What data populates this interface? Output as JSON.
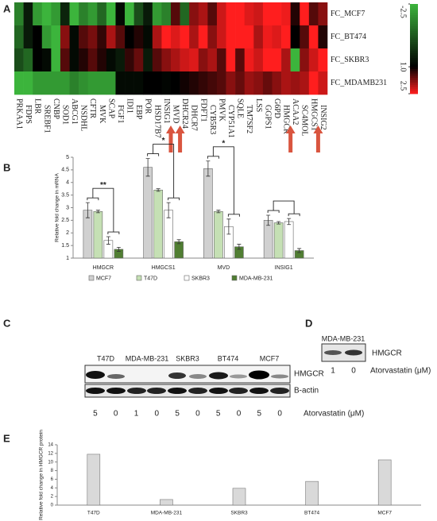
{
  "panel_labels": [
    "A",
    "B",
    "C",
    "D",
    "E"
  ],
  "chart_data": [
    {
      "type": "heatmap",
      "columns": [
        "PRKAA1",
        "FDPS",
        "LBR",
        "SREBF1",
        "CNBP",
        "SOD1",
        "ABCG1",
        "NSDHL",
        "CFTR",
        "MVK",
        "SCAP",
        "FGF1",
        "IDI1",
        "EBP",
        "POR",
        "HSD17B7",
        "INSIG1",
        "MVD",
        "DHCR24",
        "DHCR7",
        "FDFT1",
        "CYB5R3",
        "PMVK",
        "CYP51A1",
        "SQLE",
        "TM7SF2",
        "LSS",
        "GGPS1",
        "G6PD",
        "HMGCR",
        "ACAA2",
        "SC4MOL",
        "HMGCS1",
        "INSIG2"
      ],
      "rows": [
        "FC_MCF7",
        "FC_BT474",
        "FC_SKBR3",
        "FC_MDAMB231"
      ],
      "values": [
        [
          -1.5,
          0.5,
          -2,
          -2.5,
          -2,
          0.3,
          -2.5,
          -1.5,
          -2,
          -1,
          -2.5,
          0.8,
          -2.5,
          -0.5,
          0.5,
          -2,
          -1.5,
          1.5,
          -1,
          1.8,
          2,
          1.5,
          2.2,
          2.5,
          2.5,
          2.3,
          2.2,
          2.5,
          2.5,
          2.4,
          1.2,
          2.5,
          1.5,
          1.8
        ],
        [
          -1,
          0.5,
          1,
          -2,
          -2.5,
          1.8,
          0.8,
          1.5,
          1.7,
          1.3,
          2,
          1.5,
          1,
          1.2,
          0.8,
          2,
          2.5,
          2.3,
          2.5,
          2,
          2.5,
          1.8,
          2.2,
          2.5,
          2.5,
          2.5,
          2,
          2.4,
          2.3,
          2.5,
          1,
          1.5,
          2.5,
          1.2
        ],
        [
          -0.5,
          -1,
          1,
          0.8,
          -2.5,
          1.5,
          0.8,
          1.2,
          1.5,
          1.2,
          0.8,
          0.5,
          1.3,
          1.6,
          0.5,
          1.5,
          1.8,
          2,
          2.2,
          2.3,
          1.8,
          2,
          1.5,
          2.5,
          1.5,
          2.4,
          2.2,
          2.5,
          2.5,
          2,
          -2.5,
          1.8,
          2.2,
          2.5
        ],
        [
          -2.5,
          -2.5,
          -2,
          -2,
          -2,
          -2,
          -1.5,
          -1.8,
          -2,
          -2,
          -2,
          0.8,
          0.8,
          0.8,
          1,
          1,
          0.9,
          1,
          1.1,
          1.2,
          1.3,
          1.4,
          1.5,
          1.8,
          1.6,
          1.9,
          1.8,
          1.6,
          1.8,
          2,
          1.9,
          2,
          2.5,
          2.2
        ]
      ],
      "colorbar_ticks": [
        -2.5,
        {
          "value": 1,
          "label": "1.0"
        },
        2.5
      ],
      "colors": [
        "#3cb43c",
        "#000000",
        "#ff1e1e"
      ],
      "highlight": [
        16,
        17,
        29,
        32
      ],
      "highlight_color": "#d9553f"
    },
    {
      "type": "bar",
      "y_label": "Relative fold change in mRNA",
      "categories": [
        "HMGCR",
        "HMGCS1",
        "MVD",
        "INSIG1"
      ],
      "series": [
        {
          "name": "MCF7",
          "color": "#d0d0d0",
          "values": [
            2.9,
            4.6,
            4.55,
            2.5
          ],
          "errors": [
            0.3,
            0.35,
            0.3,
            0.2
          ]
        },
        {
          "name": "T47D",
          "color": "#c5e0b4",
          "values": [
            2.85,
            3.7,
            2.85,
            2.4
          ],
          "errors": [
            0.05,
            0.05,
            0.05,
            0.05
          ]
        },
        {
          "name": "SKBR3",
          "color": "#ffffff",
          "values": [
            1.7,
            2.9,
            2.25,
            2.45
          ],
          "errors": [
            0.15,
            0.3,
            0.3,
            0.12
          ]
        },
        {
          "name": "MDA-MB-231",
          "color": "#507e32",
          "values": [
            1.35,
            1.65,
            1.45,
            1.3
          ],
          "errors": [
            0.08,
            0.08,
            0.1,
            0.08
          ]
        }
      ],
      "ylim": [
        1,
        5
      ],
      "yticks": [
        1,
        1.5,
        2,
        2.5,
        3,
        3.5,
        4,
        4.5,
        5
      ],
      "brackets": [
        {
          "category": 0,
          "label": "**"
        },
        {
          "category": 1,
          "label": "*"
        },
        {
          "category": 2,
          "label": "*"
        },
        {
          "category": 3
        }
      ]
    },
    {
      "type": "bar",
      "y_label": "Relative fold change in HMGCR protein",
      "categories": [
        "T47D",
        "MDA-MB-231",
        "SKBR3",
        "BT474",
        "MCF7"
      ],
      "values": [
        11.8,
        1.3,
        3.9,
        5.5,
        10.5
      ],
      "color": "#d9d9d9",
      "ylim": [
        0,
        14
      ],
      "yticks": [
        0,
        2,
        4,
        6,
        8,
        10,
        12,
        14
      ]
    }
  ],
  "blots": [
    {
      "lanes": [
        "T47D",
        "MDA-MB-231",
        "SKBR3",
        "BT474",
        "MCF7"
      ],
      "bands": [
        "HMGCR",
        "B-actin"
      ],
      "doses": [
        5,
        0,
        1,
        0,
        5,
        0,
        5,
        0,
        5,
        0
      ],
      "dose_label": "Atorvastatin (μM)"
    },
    {
      "lanes": [
        "MDA-MB-231"
      ],
      "bands": [
        "HMGCR"
      ],
      "doses": [
        1,
        0
      ],
      "dose_label": "Atorvastatin (μM)"
    }
  ]
}
